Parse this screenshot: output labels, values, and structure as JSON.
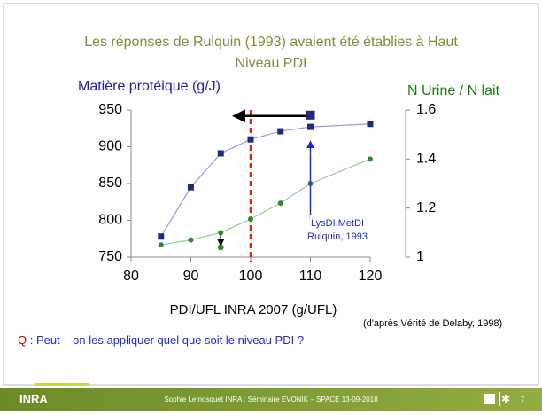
{
  "title": "Les réponses de Rulquin (1993) avaient été établies à Haut Niveau PDI",
  "chart_data": {
    "type": "line",
    "xlabel": "PDI/UFL  INRA 2007 (g/UFL)",
    "xlim": [
      80,
      120
    ],
    "xticks": [
      80,
      90,
      100,
      110,
      120
    ],
    "ylim": [
      750,
      950
    ],
    "yticks": [
      750,
      800,
      850,
      900,
      950
    ],
    "y2lim": [
      1,
      1.6
    ],
    "y2ticks": [
      1,
      1.2,
      1.4,
      1.6
    ],
    "series": [
      {
        "name": "Matière protéique  (g/J)",
        "color": "#1f2a7a",
        "line_color": "#9a9ad8",
        "marker": "square",
        "x": [
          85,
          90,
          95,
          100,
          105,
          110,
          120
        ],
        "values": [
          778,
          845,
          891,
          910,
          921,
          927,
          931
        ]
      },
      {
        "name": "N Urine / N lait",
        "color": "#2e8b2e",
        "line_color": "#8fd08f",
        "marker": "circle",
        "axis": "y2",
        "x": [
          85,
          90,
          95,
          100,
          105,
          110,
          120
        ],
        "values": [
          1.05,
          1.07,
          1.1,
          1.155,
          1.22,
          1.3,
          1.4
        ]
      }
    ],
    "annotation_points": [
      {
        "x": 110,
        "y": 943,
        "axis": "y",
        "color": "#1f2a7a",
        "marker": "square"
      },
      {
        "x": 95,
        "y": 1.04,
        "axis": "y2",
        "color": "#2e8b2e",
        "marker": "circle"
      }
    ],
    "reference_x": 100,
    "annotation": [
      "LysDI,MetDI",
      "Rulquin, 1993"
    ]
  },
  "source": "(d'après Vérité de Delaby, 1998)",
  "question_prefix": "Q",
  "question": " : Peut – on  les appliquer quel que soit le niveau PDI ?",
  "footer": {
    "logo": "INRA",
    "text": "Sophie Lemosquet INRA : Séminaire EVONIK – SPACE 13-09-2018",
    "page": "7"
  }
}
